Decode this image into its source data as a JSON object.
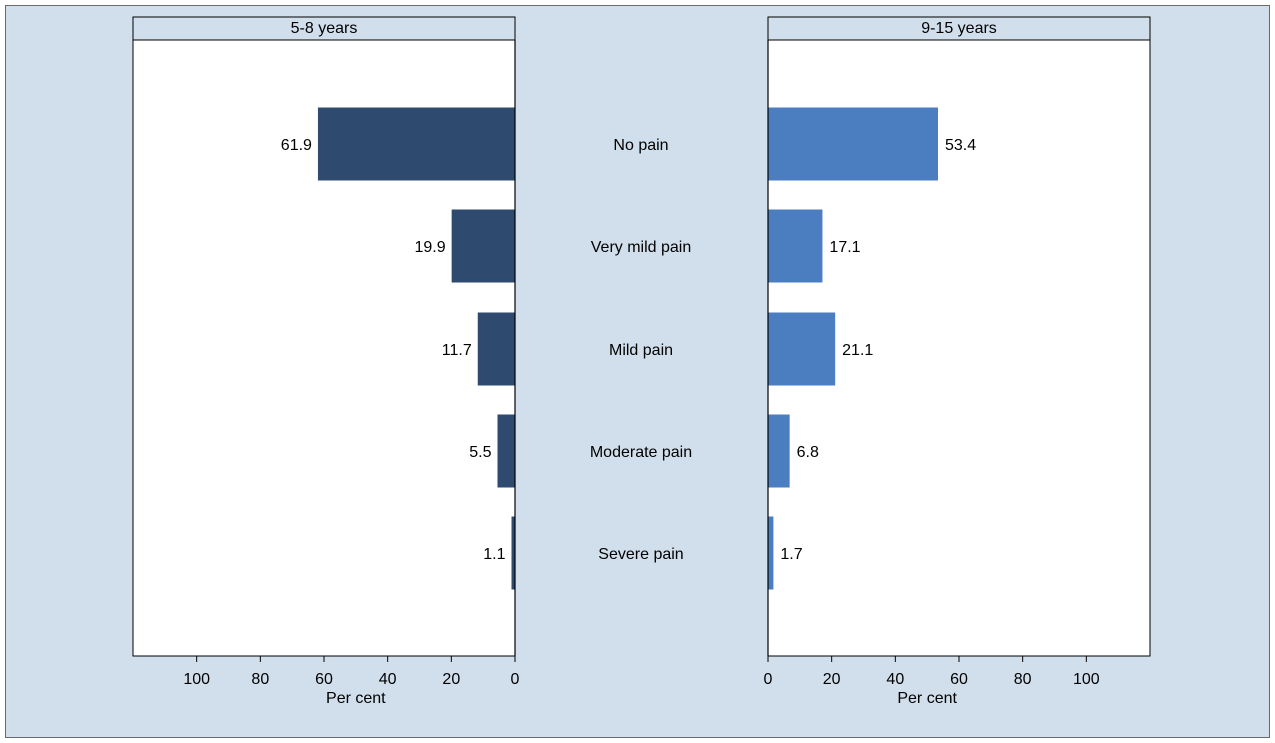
{
  "chart_data": {
    "type": "bar",
    "orientation": "horizontal-butterfly",
    "categories": [
      "No pain",
      "Very mild pain",
      "Mild pain",
      "Moderate pain",
      "Severe pain"
    ],
    "panels": [
      {
        "title": "5-8 years",
        "direction": "left",
        "values": [
          61.9,
          19.9,
          11.7,
          5.5,
          1.1
        ],
        "value_labels": [
          "61.9",
          "19.9",
          "11.7",
          "5.5",
          "1.1"
        ],
        "color": "#2e4a6e",
        "xlabel": "Per cent",
        "xlim": [
          0,
          120
        ],
        "ticks": [
          0,
          20,
          40,
          60,
          80,
          100
        ],
        "tick_labels": [
          "0",
          "20",
          "40",
          "60",
          "80",
          "100"
        ]
      },
      {
        "title": "9-15 years",
        "direction": "right",
        "values": [
          53.4,
          17.1,
          21.1,
          6.8,
          1.7
        ],
        "value_labels": [
          "53.4",
          "17.1",
          "21.1",
          "6.8",
          "1.7"
        ],
        "color": "#4b7ec1",
        "xlabel": "Per cent",
        "xlim": [
          0,
          120
        ],
        "ticks": [
          0,
          20,
          40,
          60,
          80,
          100
        ],
        "tick_labels": [
          "0",
          "20",
          "40",
          "60",
          "80",
          "100"
        ]
      }
    ],
    "grid": false,
    "background": "#d1dfec"
  }
}
